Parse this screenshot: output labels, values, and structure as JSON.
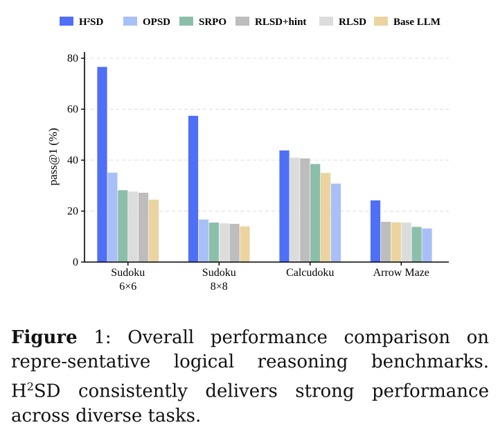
{
  "chart_data": {
    "type": "bar",
    "ylabel": "pass@1 (%)",
    "ylim": [
      0,
      80
    ],
    "yticks": [
      0,
      20,
      40,
      60,
      80
    ],
    "grid": "horizontal dashed",
    "legend_position": "top",
    "legend": [
      {
        "name": "H²SD",
        "color": "#4f6ff7"
      },
      {
        "name": "OPSD",
        "color": "#a9bff7"
      },
      {
        "name": "SRPO",
        "color": "#8bbfaa"
      },
      {
        "name": "RLSD+hint",
        "color": "#bdbdbd"
      },
      {
        "name": "RLSD",
        "color": "#dcdcdc"
      },
      {
        "name": "Base LLM",
        "color": "#ebd49f"
      }
    ],
    "groups": [
      {
        "label_lines": [
          "Sudoku",
          "6×6"
        ],
        "bars": [
          {
            "series": "H²SD",
            "value": 76.6
          },
          {
            "series": "OPSD",
            "value": 35.1
          },
          {
            "series": "SRPO",
            "value": 28.2
          },
          {
            "series": "RLSD",
            "value": 27.7
          },
          {
            "series": "RLSD+hint",
            "value": 27.2
          },
          {
            "series": "Base LLM",
            "value": 24.5
          }
        ]
      },
      {
        "label_lines": [
          "Sudoku",
          "8×8"
        ],
        "bars": [
          {
            "series": "H²SD",
            "value": 57.4
          },
          {
            "series": "OPSD",
            "value": 16.7
          },
          {
            "series": "SRPO",
            "value": 15.5
          },
          {
            "series": "RLSD",
            "value": 15.2
          },
          {
            "series": "RLSD+hint",
            "value": 15.0
          },
          {
            "series": "Base LLM",
            "value": 14.0
          }
        ]
      },
      {
        "label_lines": [
          "Calcudoku"
        ],
        "bars": [
          {
            "series": "H²SD",
            "value": 43.8
          },
          {
            "series": "RLSD",
            "value": 41.0
          },
          {
            "series": "RLSD+hint",
            "value": 40.7
          },
          {
            "series": "SRPO",
            "value": 38.5
          },
          {
            "series": "Base LLM",
            "value": 35.0
          },
          {
            "series": "OPSD",
            "value": 30.8
          }
        ]
      },
      {
        "label_lines": [
          "Arrow Maze"
        ],
        "bars": [
          {
            "series": "H²SD",
            "value": 24.2
          },
          {
            "series": "RLSD+hint",
            "value": 15.8
          },
          {
            "series": "Base LLM",
            "value": 15.6
          },
          {
            "series": "RLSD",
            "value": 15.5
          },
          {
            "series": "SRPO",
            "value": 13.8
          },
          {
            "series": "OPSD",
            "value": 13.2
          }
        ]
      }
    ]
  },
  "caption": {
    "label": "Figure",
    "number": "1",
    "text_1": ": Overall performance comparison on repre-sentative logical reasoning benchmarks. H",
    "text_sup": "2",
    "text_2": "SD consistently delivers strong performance across diverse tasks."
  }
}
